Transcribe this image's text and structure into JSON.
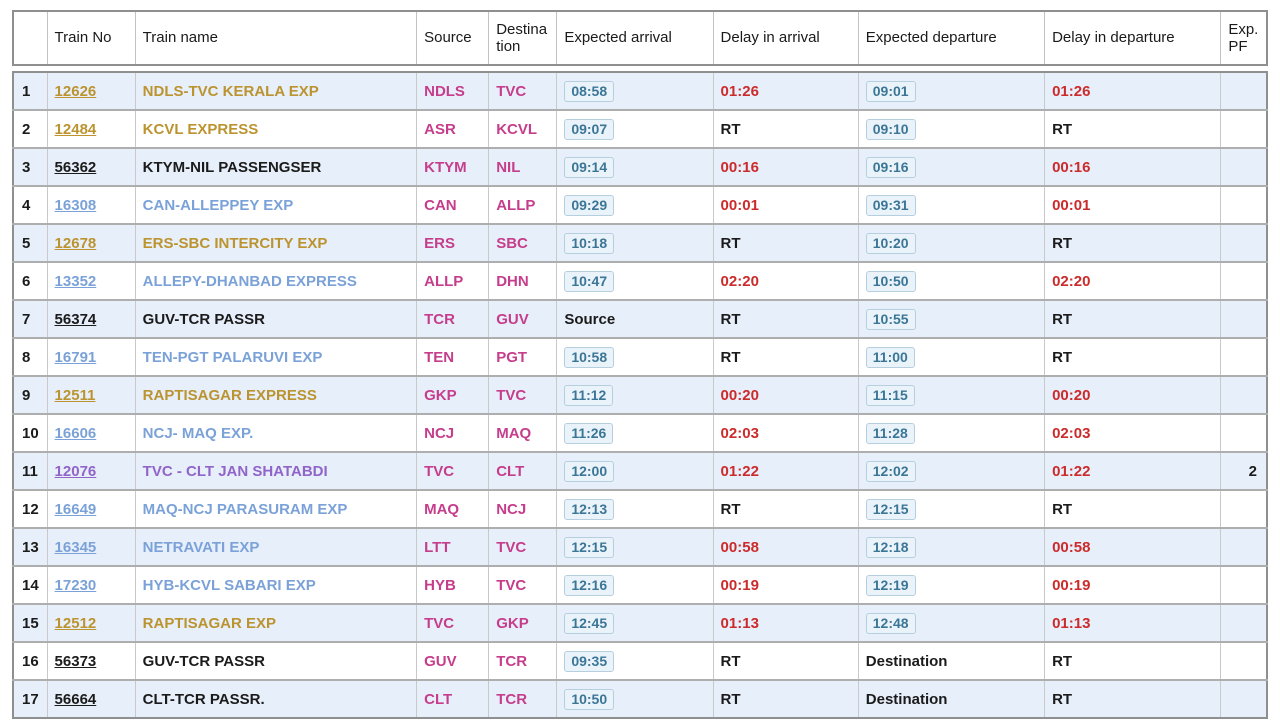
{
  "colors": {
    "accent_gold": "#bb9430",
    "accent_blue": "#7ba2d8",
    "accent_purple": "#9064c9",
    "station_pink": "#c63d8c",
    "delay_red": "#cc2b2b",
    "time_teal": "#3b7697",
    "row_alt_blue": "#e7effa"
  },
  "table": {
    "headers": {
      "sno": "",
      "train_no": "Train No",
      "train_name": "Train name",
      "source": "Source",
      "destination": "Destination",
      "expected_arrival": "Expected arrival",
      "delay_arrival": "Delay in arrival",
      "expected_departure": "Expected departure",
      "delay_departure": "Delay in departure",
      "exp_pf": "Exp. PF"
    },
    "rows": [
      {
        "sno": "1",
        "train_no": "12626",
        "train_name": "NDLS-TVC KERALA EXP",
        "name_color": "gold",
        "source": "NDLS",
        "destination": "TVC",
        "expected_arrival": "08:58",
        "arrival_style": "time",
        "delay_arrival": "01:26",
        "expected_departure": "09:01",
        "departure_style": "time",
        "delay_departure": "01:26",
        "exp_pf": ""
      },
      {
        "sno": "2",
        "train_no": "12484",
        "train_name": "KCVL EXPRESS",
        "name_color": "gold",
        "source": "ASR",
        "destination": "KCVL",
        "expected_arrival": "09:07",
        "arrival_style": "time",
        "delay_arrival": "RT",
        "expected_departure": "09:10",
        "departure_style": "time",
        "delay_departure": "RT",
        "exp_pf": ""
      },
      {
        "sno": "3",
        "train_no": "56362",
        "train_name": "KTYM-NIL PASSENGSER",
        "name_color": "black",
        "source": "KTYM",
        "destination": "NIL",
        "expected_arrival": "09:14",
        "arrival_style": "time",
        "delay_arrival": "00:16",
        "expected_departure": "09:16",
        "departure_style": "time",
        "delay_departure": "00:16",
        "exp_pf": ""
      },
      {
        "sno": "4",
        "train_no": "16308",
        "train_name": "CAN-ALLEPPEY EXP",
        "name_color": "blue",
        "source": "CAN",
        "destination": "ALLP",
        "expected_arrival": "09:29",
        "arrival_style": "time",
        "delay_arrival": "00:01",
        "expected_departure": "09:31",
        "departure_style": "time",
        "delay_departure": "00:01",
        "exp_pf": ""
      },
      {
        "sno": "5",
        "train_no": "12678",
        "train_name": "ERS-SBC INTERCITY EXP",
        "name_color": "gold",
        "source": "ERS",
        "destination": "SBC",
        "expected_arrival": "10:18",
        "arrival_style": "time",
        "delay_arrival": "RT",
        "expected_departure": "10:20",
        "departure_style": "time",
        "delay_departure": "RT",
        "exp_pf": ""
      },
      {
        "sno": "6",
        "train_no": "13352",
        "train_name": "ALLEPY-DHANBAD EXPRESS",
        "name_color": "blue",
        "source": "ALLP",
        "destination": "DHN",
        "expected_arrival": "10:47",
        "arrival_style": "time",
        "delay_arrival": "02:20",
        "expected_departure": "10:50",
        "departure_style": "time",
        "delay_departure": "02:20",
        "exp_pf": ""
      },
      {
        "sno": "7",
        "train_no": "56374",
        "train_name": "GUV-TCR PASSR",
        "name_color": "black",
        "source": "TCR",
        "destination": "GUV",
        "expected_arrival": "Source",
        "arrival_style": "text",
        "delay_arrival": "RT",
        "expected_departure": "10:55",
        "departure_style": "time",
        "delay_departure": "RT",
        "exp_pf": ""
      },
      {
        "sno": "8",
        "train_no": "16791",
        "train_name": "TEN-PGT PALARUVI EXP",
        "name_color": "blue",
        "source": "TEN",
        "destination": "PGT",
        "expected_arrival": "10:58",
        "arrival_style": "time",
        "delay_arrival": "RT",
        "expected_departure": "11:00",
        "departure_style": "time",
        "delay_departure": "RT",
        "exp_pf": ""
      },
      {
        "sno": "9",
        "train_no": "12511",
        "train_name": "RAPTISAGAR EXPRESS",
        "name_color": "gold",
        "source": "GKP",
        "destination": "TVC",
        "expected_arrival": "11:12",
        "arrival_style": "time",
        "delay_arrival": "00:20",
        "expected_departure": "11:15",
        "departure_style": "time",
        "delay_departure": "00:20",
        "exp_pf": ""
      },
      {
        "sno": "10",
        "train_no": "16606",
        "train_name": "NCJ- MAQ EXP.",
        "name_color": "blue",
        "source": "NCJ",
        "destination": "MAQ",
        "expected_arrival": "11:26",
        "arrival_style": "time",
        "delay_arrival": "02:03",
        "expected_departure": "11:28",
        "departure_style": "time",
        "delay_departure": "02:03",
        "exp_pf": ""
      },
      {
        "sno": "11",
        "train_no": "12076",
        "train_name": "TVC - CLT JAN SHATABDI",
        "name_color": "purple",
        "source": "TVC",
        "destination": "CLT",
        "expected_arrival": "12:00",
        "arrival_style": "time",
        "delay_arrival": "01:22",
        "expected_departure": "12:02",
        "departure_style": "time",
        "delay_departure": "01:22",
        "exp_pf": "2"
      },
      {
        "sno": "12",
        "train_no": "16649",
        "train_name": "MAQ-NCJ PARASURAM EXP",
        "name_color": "blue",
        "source": "MAQ",
        "destination": "NCJ",
        "expected_arrival": "12:13",
        "arrival_style": "time",
        "delay_arrival": "RT",
        "expected_departure": "12:15",
        "departure_style": "time",
        "delay_departure": "RT",
        "exp_pf": ""
      },
      {
        "sno": "13",
        "train_no": "16345",
        "train_name": "NETRAVATI EXP",
        "name_color": "blue",
        "source": "LTT",
        "destination": "TVC",
        "expected_arrival": "12:15",
        "arrival_style": "time",
        "delay_arrival": "00:58",
        "expected_departure": "12:18",
        "departure_style": "time",
        "delay_departure": "00:58",
        "exp_pf": ""
      },
      {
        "sno": "14",
        "train_no": "17230",
        "train_name": "HYB-KCVL SABARI EXP",
        "name_color": "blue",
        "source": "HYB",
        "destination": "TVC",
        "expected_arrival": "12:16",
        "arrival_style": "time",
        "delay_arrival": "00:19",
        "expected_departure": "12:19",
        "departure_style": "time",
        "delay_departure": "00:19",
        "exp_pf": ""
      },
      {
        "sno": "15",
        "train_no": "12512",
        "train_name": "RAPTISAGAR EXP",
        "name_color": "gold",
        "source": "TVC",
        "destination": "GKP",
        "expected_arrival": "12:45",
        "arrival_style": "time",
        "delay_arrival": "01:13",
        "expected_departure": "12:48",
        "departure_style": "time",
        "delay_departure": "01:13",
        "exp_pf": ""
      },
      {
        "sno": "16",
        "train_no": "56373",
        "train_name": "GUV-TCR PASSR",
        "name_color": "black",
        "source": "GUV",
        "destination": "TCR",
        "expected_arrival": "09:35",
        "arrival_style": "time",
        "delay_arrival": "RT",
        "expected_departure": "Destination",
        "departure_style": "text",
        "delay_departure": "RT",
        "exp_pf": ""
      },
      {
        "sno": "17",
        "train_no": "56664",
        "train_name": "CLT-TCR PASSR.",
        "name_color": "black",
        "source": "CLT",
        "destination": "TCR",
        "expected_arrival": "10:50",
        "arrival_style": "time",
        "delay_arrival": "RT",
        "expected_departure": "Destination",
        "departure_style": "text",
        "delay_departure": "RT",
        "exp_pf": ""
      }
    ]
  }
}
